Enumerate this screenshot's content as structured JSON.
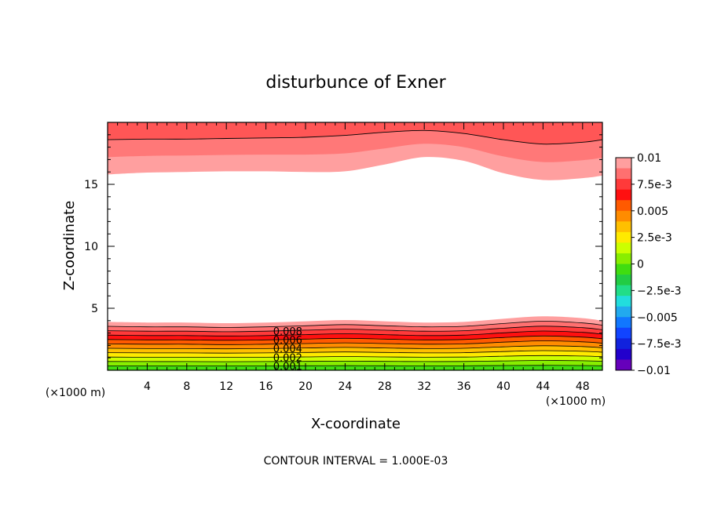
{
  "chart_data": {
    "type": "contour",
    "title": "disturbunce of Exner",
    "xlabel": "X-coordinate",
    "ylabel": "Z-coordinate",
    "x_unit": "(×1000 m)",
    "y_unit": "(×1000 m)",
    "xlim": [
      0,
      50
    ],
    "ylim": [
      0,
      20
    ],
    "x_ticks": [
      4,
      8,
      12,
      16,
      20,
      24,
      28,
      32,
      36,
      40,
      44,
      48
    ],
    "y_ticks": [
      5,
      10,
      15
    ],
    "contour_interval_text": "CONTOUR INTERVAL = 1.000E-03",
    "colorbar": {
      "labels": [
        "0.01",
        "7.5e-3",
        "0.005",
        "2.5e-3",
        "0",
        "-2.5e-3",
        "-0.005",
        "-7.5e-3",
        "-0.01"
      ],
      "colors_top_to_bottom": [
        "#ff9f9f",
        "#ff7070",
        "#ff3a3a",
        "#ff1010",
        "#ff5a00",
        "#ff8c00",
        "#ffc000",
        "#ffea00",
        "#ccff00",
        "#88ee00",
        "#40dd10",
        "#22cc44",
        "#22dd88",
        "#22dddd",
        "#22aaee",
        "#1177ff",
        "#1144ff",
        "#1122dd",
        "#2200cc",
        "#6600bb"
      ]
    },
    "contour_labels": [
      "0.008",
      "0.006",
      "0.004",
      "0.002",
      "0.001"
    ],
    "lower_band": {
      "x": [
        0,
        4,
        8,
        12,
        16,
        20,
        24,
        28,
        32,
        36,
        40,
        44,
        48,
        50
      ],
      "top_height": [
        3.9,
        3.85,
        3.85,
        3.8,
        3.85,
        3.95,
        4.05,
        3.95,
        3.85,
        3.9,
        4.15,
        4.35,
        4.2,
        4.0
      ],
      "levels_bottom_to_top": [
        0.001,
        0.002,
        0.003,
        0.004,
        0.005,
        0.006,
        0.007,
        0.008,
        0.009,
        0.01
      ]
    },
    "upper_band": {
      "x": [
        0,
        4,
        8,
        12,
        16,
        20,
        24,
        28,
        32,
        36,
        40,
        44,
        48,
        50
      ],
      "bottom_height": [
        15.8,
        15.95,
        16.0,
        16.05,
        16.05,
        16.0,
        16.05,
        16.6,
        17.2,
        16.9,
        15.9,
        15.35,
        15.5,
        15.7
      ],
      "contour_height": [
        18.6,
        18.65,
        18.65,
        18.7,
        18.75,
        18.8,
        18.95,
        19.2,
        19.35,
        19.1,
        18.6,
        18.25,
        18.4,
        18.6
      ]
    }
  }
}
